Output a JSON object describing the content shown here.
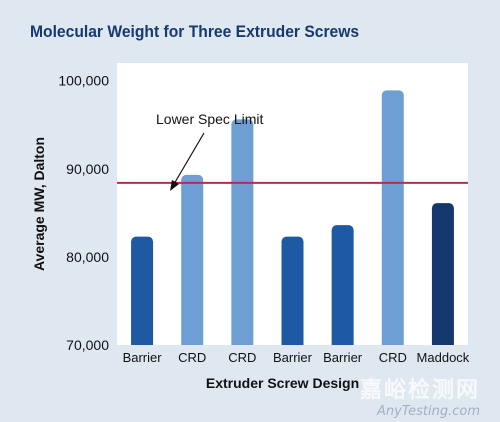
{
  "chart_data": {
    "type": "bar",
    "title": "Molecular Weight for Three Extruder Screws",
    "xlabel": "Extruder Screw Design",
    "ylabel": "Average MW, Dalton",
    "ylim": [
      70000,
      102000
    ],
    "yticks": [
      70000,
      80000,
      90000,
      100000
    ],
    "ytick_labels": [
      "70,000",
      "80,000",
      "90,000",
      "100,000"
    ],
    "categories": [
      "Barrier",
      "CRD",
      "CRD",
      "Barrier",
      "Barrier",
      "CRD",
      "Maddock"
    ],
    "values": [
      82300,
      89300,
      95600,
      82300,
      83600,
      98900,
      86100
    ],
    "bar_colors": [
      "#1d5aa3",
      "#6e9fd4",
      "#6e9fd4",
      "#1d5aa3",
      "#1d5aa3",
      "#6e9fd4",
      "#14386b"
    ],
    "reference_line": {
      "value": 88400,
      "label": "Lower Spec Limit",
      "color": "#b0304a"
    },
    "grid": false,
    "plot_background": "#ffffff"
  },
  "watermark": {
    "cn": "嘉峪检测网",
    "en": "AnyTesting.com"
  }
}
